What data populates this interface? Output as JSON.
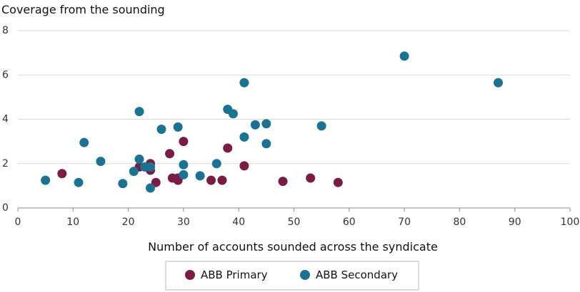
{
  "chart_data": {
    "type": "scatter",
    "title": "",
    "ylabel": "Coverage from the sounding",
    "xlabel": "Number of accounts sounded across the syndicate",
    "xlim": [
      0,
      100
    ],
    "ylim": [
      0,
      8
    ],
    "x_ticks": [
      "0",
      "10",
      "20",
      "30",
      "40",
      "50",
      "60",
      "70",
      "80",
      "90",
      "100"
    ],
    "y_ticks": [
      "0",
      "2",
      "4",
      "6",
      "8"
    ],
    "grid": "horizontal",
    "legend_position": "bottom-center",
    "series": [
      {
        "name": "ABB Primary",
        "color": "#7a1c45",
        "points": [
          [
            8,
            1.55
          ],
          [
            22,
            1.85
          ],
          [
            24,
            2.0
          ],
          [
            24,
            1.7
          ],
          [
            25,
            1.15
          ],
          [
            27.5,
            2.45
          ],
          [
            28,
            1.35
          ],
          [
            29,
            1.35
          ],
          [
            29,
            1.25
          ],
          [
            30,
            3.0
          ],
          [
            35,
            1.25
          ],
          [
            37,
            1.25
          ],
          [
            38,
            2.7
          ],
          [
            41,
            1.9
          ],
          [
            48,
            1.2
          ],
          [
            53,
            1.35
          ],
          [
            58,
            1.15
          ]
        ]
      },
      {
        "name": "ABB Secondary",
        "color": "#1b7394",
        "points": [
          [
            5,
            1.25
          ],
          [
            11,
            1.15
          ],
          [
            12,
            2.95
          ],
          [
            15,
            2.1
          ],
          [
            19,
            1.1
          ],
          [
            21,
            1.65
          ],
          [
            22,
            4.35
          ],
          [
            22,
            2.2
          ],
          [
            23,
            1.85
          ],
          [
            24,
            1.85
          ],
          [
            24,
            0.9
          ],
          [
            26,
            3.55
          ],
          [
            29,
            3.65
          ],
          [
            30,
            1.95
          ],
          [
            30,
            1.5
          ],
          [
            33,
            1.45
          ],
          [
            36,
            2.0
          ],
          [
            38,
            4.45
          ],
          [
            39,
            4.25
          ],
          [
            41,
            5.65
          ],
          [
            41,
            3.2
          ],
          [
            43,
            3.75
          ],
          [
            45,
            3.8
          ],
          [
            45,
            2.9
          ],
          [
            55,
            3.7
          ],
          [
            70,
            6.85
          ],
          [
            87,
            5.65
          ]
        ]
      }
    ]
  }
}
